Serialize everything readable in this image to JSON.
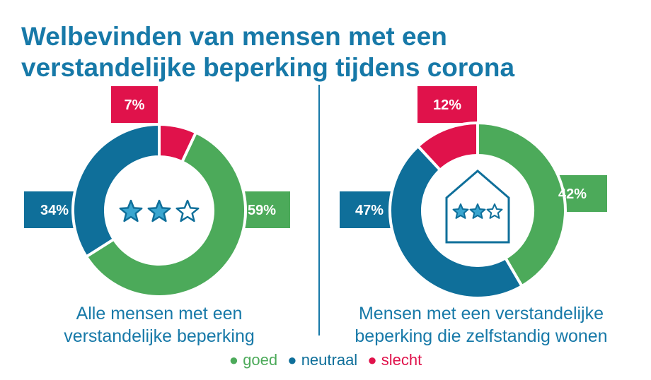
{
  "title": {
    "line1": "Welbevinden van mensen met een",
    "line2": "verstandelijke beperking tijdens corona"
  },
  "colors": {
    "goed": "#4caa5a",
    "neutraal": "#0f6f9a",
    "slecht": "#e0124b",
    "title": "#1779a8"
  },
  "chart_data": [
    {
      "type": "pie",
      "donut": true,
      "caption": [
        "Alle mensen met een",
        "verstandelijke beperking"
      ],
      "center_icon": "three-stars-icon",
      "slices": [
        {
          "category": "goed",
          "value": 59,
          "label": "59%"
        },
        {
          "category": "neutraal",
          "value": 34,
          "label": "34%"
        },
        {
          "category": "slecht",
          "value": 7,
          "label": "7%"
        }
      ]
    },
    {
      "type": "pie",
      "donut": true,
      "caption": [
        "Mensen met een verstandelijke",
        "beperking die zelfstandig wonen"
      ],
      "center_icon": "house-with-stars-icon",
      "slices": [
        {
          "category": "goed",
          "value": 42,
          "label": "42%"
        },
        {
          "category": "neutraal",
          "value": 47,
          "label": "47%"
        },
        {
          "category": "slecht",
          "value": 12,
          "label": "12%"
        }
      ]
    }
  ],
  "legend": [
    {
      "key": "goed",
      "label": "goed"
    },
    {
      "key": "neutraal",
      "label": "neutraal"
    },
    {
      "key": "slecht",
      "label": "slecht"
    }
  ]
}
